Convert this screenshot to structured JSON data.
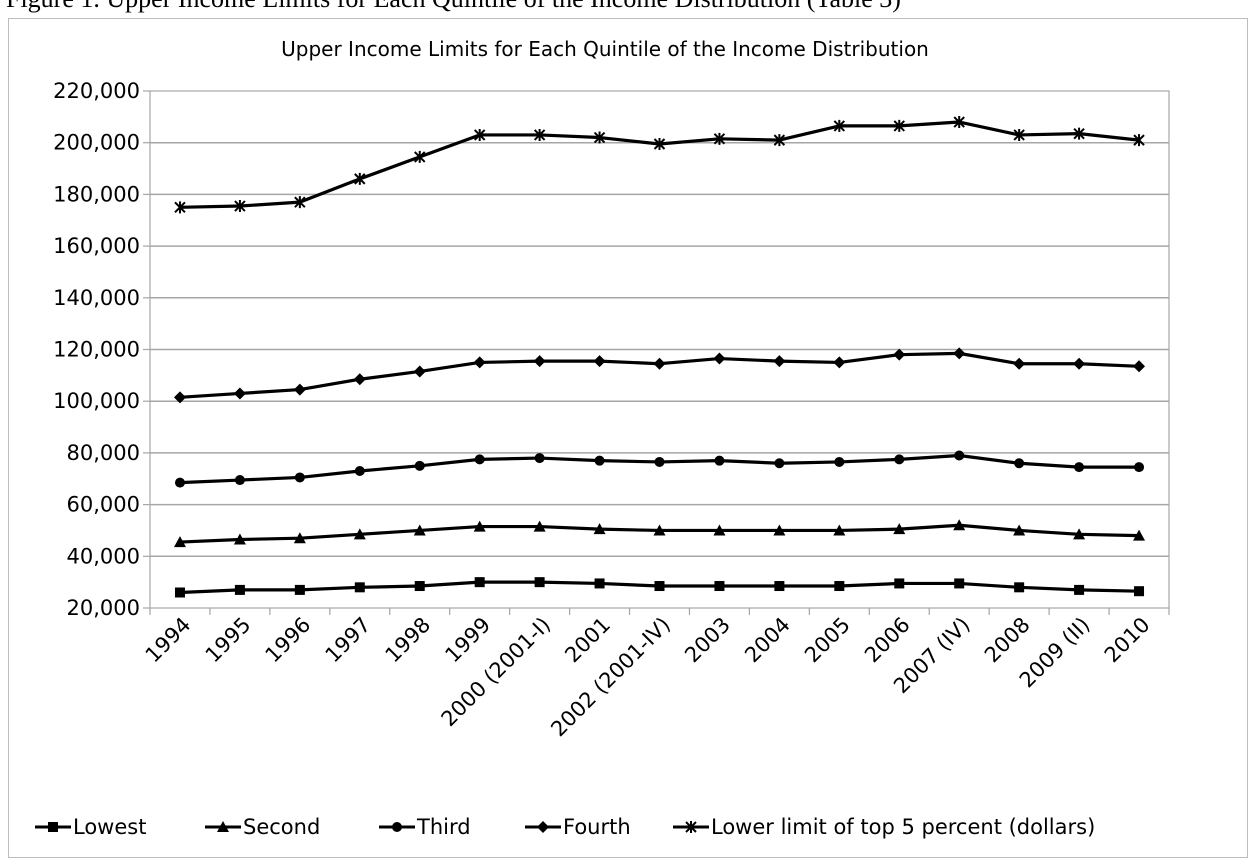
{
  "caption": "Figure 1. Upper Income Limits for Each Quintile of the Income Distribution (Table 3)",
  "chart_data": {
    "type": "line",
    "title": "Upper Income Limits for Each Quintile of the Income Distribution",
    "xlabel": "",
    "ylabel": "",
    "ylim": [
      20000,
      220000
    ],
    "yticks": [
      20000,
      40000,
      60000,
      80000,
      100000,
      120000,
      140000,
      160000,
      180000,
      200000,
      220000
    ],
    "grid": true,
    "legend": "bottom",
    "categories": [
      "1994",
      "1995",
      "1996",
      "1997",
      "1998",
      "1999",
      "2000 (2001-I)",
      "2001",
      "2002 (2001-IV)",
      "2003",
      "2004",
      "2005",
      "2006",
      "2007 (IV)",
      "2008",
      "2009 (II)",
      "2010"
    ],
    "series": [
      {
        "name": "Lowest",
        "marker": "square",
        "color": "#000000",
        "values": [
          26000,
          27000,
          27000,
          28000,
          28500,
          30000,
          30000,
          29500,
          28500,
          28500,
          28500,
          28500,
          29500,
          29500,
          28000,
          27000,
          26500
        ]
      },
      {
        "name": "Second",
        "marker": "triangle",
        "color": "#000000",
        "values": [
          45500,
          46500,
          47000,
          48500,
          50000,
          51500,
          51500,
          50500,
          50000,
          50000,
          50000,
          50000,
          50500,
          52000,
          50000,
          48500,
          48000
        ]
      },
      {
        "name": "Third",
        "marker": "circle",
        "color": "#000000",
        "values": [
          68500,
          69500,
          70500,
          73000,
          75000,
          77500,
          78000,
          77000,
          76500,
          77000,
          76000,
          76500,
          77500,
          79000,
          76000,
          74500,
          74500
        ]
      },
      {
        "name": "Fourth",
        "marker": "diamond",
        "color": "#000000",
        "values": [
          101500,
          103000,
          104500,
          108500,
          111500,
          115000,
          115500,
          115500,
          114500,
          116500,
          115500,
          115000,
          118000,
          118500,
          114500,
          114500,
          113500
        ]
      },
      {
        "name": "Lower limit of top 5 percent (dollars)",
        "marker": "star",
        "color": "#000000",
        "values": [
          175000,
          175500,
          177000,
          186000,
          194500,
          203000,
          203000,
          202000,
          199500,
          201500,
          201000,
          206500,
          206500,
          208000,
          203000,
          203500,
          201000
        ]
      }
    ]
  }
}
